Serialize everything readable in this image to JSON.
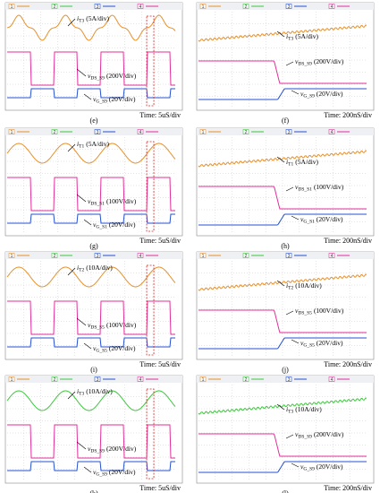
{
  "channels": [
    "1",
    "2",
    "3",
    "4"
  ],
  "panels": [
    {
      "caption": "(e)",
      "time": "Time: 5uS/div",
      "traces": [
        {
          "sym": "i",
          "sub": "T3",
          "scale": "(5A/div)",
          "color": "#e8902a"
        },
        {
          "sym": "v",
          "sub": "DS_S9",
          "scale": "(200V/div)",
          "color": "#e0309a"
        },
        {
          "sym": "v",
          "sub": "G_S9",
          "scale": "(20V/div)",
          "color": "#2450d0"
        }
      ]
    },
    {
      "caption": "(f)",
      "time": "Time: 200nS/div",
      "traces": [
        {
          "sym": "i",
          "sub": "T3",
          "scale": "(5A/div)",
          "color": "#e8902a"
        },
        {
          "sym": "v",
          "sub": "DS_S9",
          "scale": "(200V/div)",
          "color": "#e0309a"
        },
        {
          "sym": "v",
          "sub": "G_S9",
          "scale": "(20V/div)",
          "color": "#2450d0"
        }
      ]
    },
    {
      "caption": "(g)",
      "time": "Time: 5uS/div",
      "traces": [
        {
          "sym": "i",
          "sub": "T1",
          "scale": "(5A/div)",
          "color": "#e8902a"
        },
        {
          "sym": "v",
          "sub": "DS_S1",
          "scale": "(100V/div)",
          "color": "#e0309a"
        },
        {
          "sym": "v",
          "sub": "G_S1",
          "scale": "(20V/div)",
          "color": "#2450d0"
        }
      ]
    },
    {
      "caption": "(h)",
      "time": "Time: 200nS/div",
      "traces": [
        {
          "sym": "i",
          "sub": "T1",
          "scale": "(5A/div)",
          "color": "#e8902a"
        },
        {
          "sym": "v",
          "sub": "DS_S1",
          "scale": "(100V/div)",
          "color": "#e0309a"
        },
        {
          "sym": "v",
          "sub": "G_S1",
          "scale": "(20V/div)",
          "color": "#2450d0"
        }
      ]
    },
    {
      "caption": "(i)",
      "time": "Time: 5uS/div",
      "traces": [
        {
          "sym": "i",
          "sub": "T2",
          "scale": "(10A/div)",
          "color": "#e8902a"
        },
        {
          "sym": "v",
          "sub": "DS_S5",
          "scale": "(100V/div)",
          "color": "#e0309a"
        },
        {
          "sym": "v",
          "sub": "G_S5",
          "scale": "(20V/div)",
          "color": "#2450d0"
        }
      ]
    },
    {
      "caption": "(j)",
      "time": "Time: 200nS/div",
      "traces": [
        {
          "sym": "i",
          "sub": "T2",
          "scale": "(10A/div)",
          "color": "#e8902a"
        },
        {
          "sym": "v",
          "sub": "DS_S5",
          "scale": "(100V/div)",
          "color": "#e0309a"
        },
        {
          "sym": "v",
          "sub": "G_S5",
          "scale": "(20V/div)",
          "color": "#2450d0"
        }
      ]
    },
    {
      "caption": "(k)",
      "time": "Time: 5uS/div",
      "traces": [
        {
          "sym": "i",
          "sub": "T3",
          "scale": "(10A/div)",
          "color": "#3cc83c"
        },
        {
          "sym": "v",
          "sub": "DS_S9",
          "scale": "(200V/div)",
          "color": "#e0309a"
        },
        {
          "sym": "v",
          "sub": "G_S9",
          "scale": "(20V/div)",
          "color": "#2450d0"
        }
      ]
    },
    {
      "caption": "(l)",
      "time": "Time: 200nS/div",
      "traces": [
        {
          "sym": "i",
          "sub": "T3",
          "scale": "(10A/div)",
          "color": "#3cc83c"
        },
        {
          "sym": "v",
          "sub": "DS_S9",
          "scale": "(200V/div)",
          "color": "#e0309a"
        },
        {
          "sym": "v",
          "sub": "G_S9",
          "scale": "(20V/div)",
          "color": "#2450d0"
        }
      ]
    }
  ]
}
